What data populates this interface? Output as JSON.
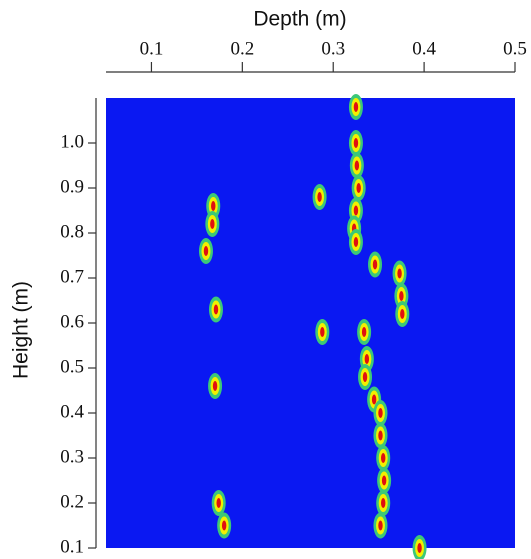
{
  "chart_data": {
    "type": "heatmap",
    "xlabel": "Depth (m)",
    "ylabel": "Height (m)",
    "xlim": [
      0.05,
      0.5
    ],
    "ylim": [
      0.1,
      1.1
    ],
    "xticks": [
      0.1,
      0.2,
      0.3,
      0.4,
      0.5
    ],
    "yticks": [
      0.1,
      0.2,
      0.3,
      0.4,
      0.5,
      0.6,
      0.7,
      0.8,
      0.9,
      {
        "value": 1,
        "label": "1.0"
      },
      0.1
    ],
    "background": "#0a18f2",
    "colors": [
      "#3cc878",
      "#f2f000",
      "#e01010"
    ],
    "x": [
      0.325,
      0.325,
      0.326,
      0.328,
      0.325,
      0.323,
      0.325,
      0.346,
      0.373,
      0.375,
      0.376,
      0.288,
      0.334,
      0.337,
      0.335,
      0.345,
      0.352,
      0.352,
      0.355,
      0.356,
      0.355,
      0.352,
      0.395,
      0.168,
      0.167,
      0.16,
      0.171,
      0.17,
      0.174,
      0.18,
      0.285
    ],
    "y": [
      1.08,
      1.0,
      0.95,
      0.9,
      0.85,
      0.81,
      0.78,
      0.73,
      0.71,
      0.66,
      0.62,
      0.58,
      0.58,
      0.52,
      0.48,
      0.43,
      0.4,
      0.35,
      0.3,
      0.25,
      0.2,
      0.15,
      0.1,
      0.86,
      0.82,
      0.76,
      0.63,
      0.46,
      0.2,
      0.15,
      0.88
    ]
  }
}
